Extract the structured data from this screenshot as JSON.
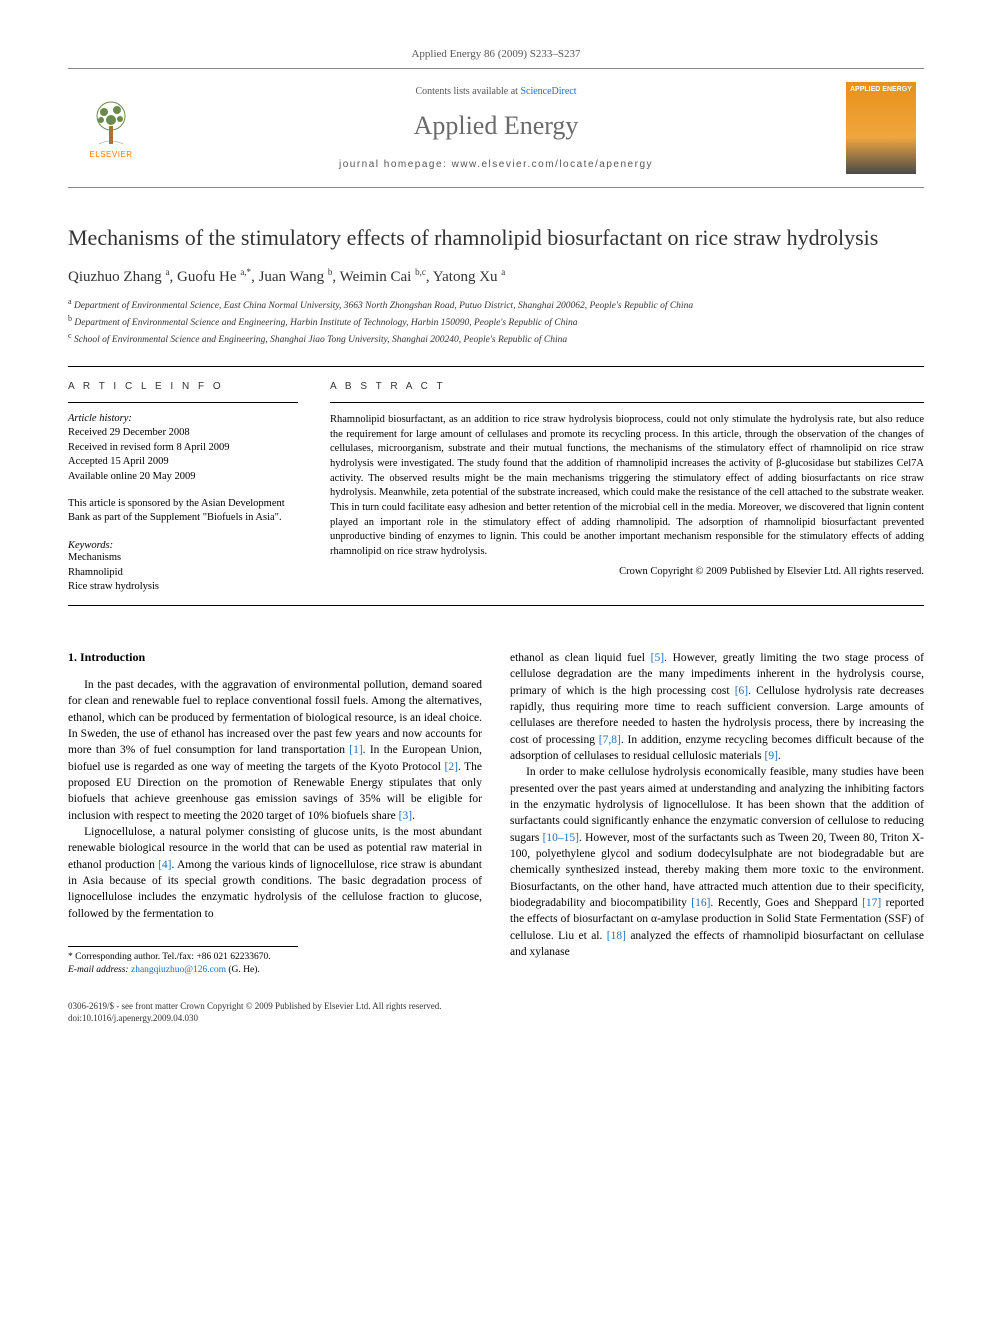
{
  "header": {
    "citation": "Applied Energy 86 (2009) S233–S237",
    "contents_prefix": "Contents lists available at ",
    "contents_link": "ScienceDirect",
    "journal_name": "Applied Energy",
    "homepage_prefix": "journal homepage: ",
    "homepage_url": "www.elsevier.com/locate/apenergy",
    "publisher_logo_text": "ELSEVIER",
    "cover_text": "APPLIED ENERGY"
  },
  "article": {
    "title": "Mechanisms of the stimulatory effects of rhamnolipid biosurfactant on rice straw hydrolysis",
    "authors_html": "Qiuzhuo Zhang <sup>a</sup>, Guofu He <sup>a,*</sup>, Juan Wang <sup>b</sup>, Weimin Cai <sup>b,c</sup>, Yatong Xu <sup>a</sup>",
    "affiliations": [
      {
        "sup": "a",
        "text": "Department of Environmental Science, East China Normal University, 3663 North Zhongshan Road, Putuo District, Shanghai 200062, People's Republic of China"
      },
      {
        "sup": "b",
        "text": "Department of Environmental Science and Engineering, Harbin Institute of Technology, Harbin 150090, People's Republic of China"
      },
      {
        "sup": "c",
        "text": "School of Environmental Science and Engineering, Shanghai Jiao Tong University, Shanghai 200240, People's Republic of China"
      }
    ]
  },
  "info": {
    "label": "A R T I C L E   I N F O",
    "history_label": "Article history:",
    "history": [
      "Received 29 December 2008",
      "Received in revised form 8 April 2009",
      "Accepted 15 April 2009",
      "Available online 20 May 2009"
    ],
    "sponsor_note": "This article is sponsored by the Asian Development Bank as part of the Supplement \"Biofuels in Asia\".",
    "keywords_label": "Keywords:",
    "keywords": [
      "Mechanisms",
      "Rhamnolipid",
      "Rice straw hydrolysis"
    ]
  },
  "abstract": {
    "label": "A B S T R A C T",
    "text": "Rhamnolipid biosurfactant, as an addition to rice straw hydrolysis bioprocess, could not only stimulate the hydrolysis rate, but also reduce the requirement for large amount of cellulases and promote its recycling process. In this article, through the observation of the changes of cellulases, microorganism, substrate and their mutual functions, the mechanisms of the stimulatory effect of rhamnolipid on rice straw hydrolysis were investigated. The study found that the addition of rhamnolipid increases the activity of β-glucosidase but stabilizes Cel7A activity. The observed results might be the main mechanisms triggering the stimulatory effect of adding biosurfactants on rice straw hydrolysis. Meanwhile, zeta potential of the substrate increased, which could make the resistance of the cell attached to the substrate weaker. This in turn could facilitate easy adhesion and better retention of the microbial cell in the media. Moreover, we discovered that lignin content played an important role in the stimulatory effect of adding rhamnolipid. The adsorption of rhamnolipid biosurfactant prevented unproductive binding of enzymes to lignin. This could be another important mechanism responsible for the stimulatory effects of adding rhamnolipid on rice straw hydrolysis.",
    "copyright": "Crown Copyright © 2009 Published by Elsevier Ltd. All rights reserved."
  },
  "body": {
    "section_heading": "1. Introduction",
    "col1_p1": "In the past decades, with the aggravation of environmental pollution, demand soared for clean and renewable fuel to replace conventional fossil fuels. Among the alternatives, ethanol, which can be produced by fermentation of biological resource, is an ideal choice. In Sweden, the use of ethanol has increased over the past few years and now accounts for more than 3% of fuel consumption for land transportation [1]. In the European Union, biofuel use is regarded as one way of meeting the targets of the Kyoto Protocol [2]. The proposed EU Direction on the promotion of Renewable Energy stipulates that only biofuels that achieve greenhouse gas emission savings of 35% will be eligible for inclusion with respect to meeting the 2020 target of 10% biofuels share [3].",
    "col1_p2": "Lignocellulose, a natural polymer consisting of glucose units, is the most abundant renewable biological resource in the world that can be used as potential raw material in ethanol production [4]. Among the various kinds of lignocellulose, rice straw is abundant in Asia because of its special growth conditions. The basic degradation process of lignocellulose includes the enzymatic hydrolysis of the cellulose fraction to glucose, followed by the fermentation to",
    "col2_p1": "ethanol as clean liquid fuel [5]. However, greatly limiting the two stage process of cellulose degradation are the many impediments inherent in the hydrolysis course, primary of which is the high processing cost [6]. Cellulose hydrolysis rate decreases rapidly, thus requiring more time to reach sufficient conversion. Large amounts of cellulases are therefore needed to hasten the hydrolysis process, there by increasing the cost of processing [7,8]. In addition, enzyme recycling becomes difficult because of the adsorption of cellulases to residual cellulosic materials [9].",
    "col2_p2": "In order to make cellulose hydrolysis economically feasible, many studies have been presented over the past years aimed at understanding and analyzing the inhibiting factors in the enzymatic hydrolysis of lignocellulose. It has been shown that the addition of surfactants could significantly enhance the enzymatic conversion of cellulose to reducing sugars [10–15]. However, most of the surfactants such as Tween 20, Tween 80, Triton X-100, polyethylene glycol and sodium dodecylsulphate are not biodegradable but are chemically synthesized instead, thereby making them more toxic to the environment. Biosurfactants, on the other hand, have attracted much attention due to their specificity, biodegradability and biocompatibility [16]. Recently, Goes and Sheppard [17] reported the effects of biosurfactant on α-amylase production in Solid State Fermentation (SSF) of cellulose. Liu et al. [18] analyzed the effects of rhamnolipid biosurfactant on cellulase and xylanase"
  },
  "corresponding": {
    "label": "* Corresponding author. Tel./fax: +86 021 62233670.",
    "email_label": "E-mail address:",
    "email": "zhangqiuzhuo@126.com",
    "email_name": "(G. He)."
  },
  "footer": {
    "line1": "0306-2619/$ - see front matter Crown Copyright © 2009 Published by Elsevier Ltd. All rights reserved.",
    "line2": "doi:10.1016/j.apenergy.2009.04.030"
  },
  "colors": {
    "link": "#1a6fc4",
    "elsevier_orange": "#ff7a00",
    "cover_top": "#e8901a",
    "cover_bottom": "#4a4a4a",
    "text_gray": "#555555"
  }
}
